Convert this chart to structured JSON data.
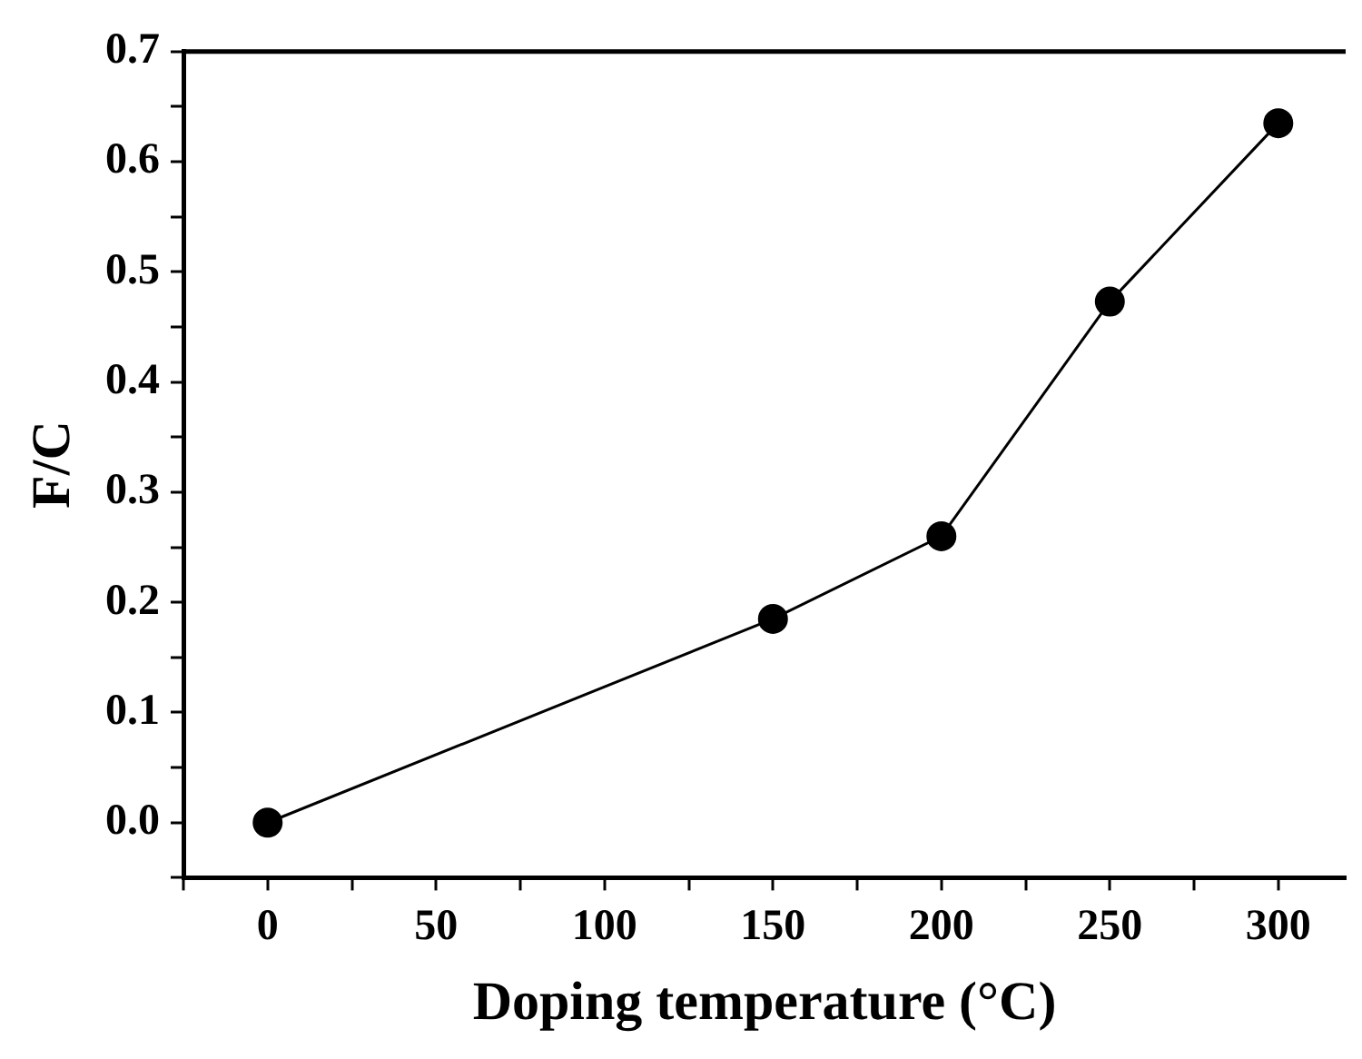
{
  "chart_data": {
    "type": "line",
    "xlabel": "Doping temperature (°C)",
    "ylabel": "F/C",
    "x": [
      0,
      150,
      200,
      250,
      300
    ],
    "series": [
      {
        "color": "#000000",
        "values": [
          0.0,
          0.185,
          0.26,
          0.473,
          0.635
        ]
      }
    ],
    "xlim": [
      -25,
      320
    ],
    "xticks": [
      {
        "value": -25,
        "label": null
      },
      0,
      {
        "value": 25,
        "label": null
      },
      50,
      {
        "value": 75,
        "label": null
      },
      100,
      {
        "value": 125,
        "label": null
      },
      150,
      {
        "value": 175,
        "label": null
      },
      200,
      {
        "value": 225,
        "label": null
      },
      250,
      {
        "value": 275,
        "label": null
      },
      300
    ],
    "ylim": [
      -0.05,
      0.7
    ],
    "yticks": [
      {
        "value": -0.05,
        "label": null
      },
      "0.0",
      {
        "value": 0.05,
        "label": null
      },
      0.1,
      {
        "value": 0.15,
        "label": null
      },
      0.2,
      {
        "value": 0.25,
        "label": null
      },
      0.3,
      {
        "value": 0.35,
        "label": null
      },
      0.4,
      {
        "value": 0.45,
        "label": null
      },
      0.5,
      {
        "value": 0.55,
        "label": null
      },
      0.6,
      {
        "value": 0.65,
        "label": null
      },
      0.7
    ],
    "marker": "circle",
    "line_style": "solid",
    "grid": false,
    "legend": false
  }
}
